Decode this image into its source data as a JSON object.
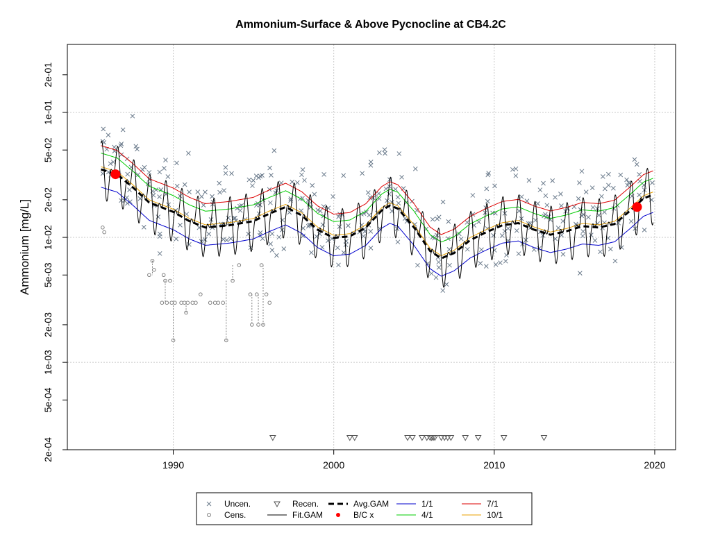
{
  "chart_data": {
    "type": "scatter",
    "title": "Ammonium-Surface & Above Pycnocline at CB4.2C",
    "xlabel": "",
    "ylabel": "Ammonium [mg/L]",
    "log_y": true,
    "xlim": [
      1983.4,
      2021.3
    ],
    "ylim": [
      0.0002,
      0.35
    ],
    "grid": true,
    "x_ticks": [
      1990,
      2000,
      2010,
      2020
    ],
    "x_tick_labels": [
      "1990",
      "2000",
      "2010",
      "2020"
    ],
    "y_ticks": [
      0.0002,
      0.0005,
      0.001,
      0.002,
      0.005,
      0.01,
      0.02,
      0.05,
      0.1,
      0.2
    ],
    "y_tick_labels": [
      "2e-04",
      "5e-04",
      "1e-03",
      "2e-03",
      "5e-03",
      "1e-02",
      "2e-02",
      "5e-02",
      "1e-01",
      "2e-01"
    ],
    "legend": {
      "position": "bottom-center",
      "entries": [
        {
          "label": "Uncen.",
          "symbol": "x",
          "color": "#6b7b8c"
        },
        {
          "label": "Cens.",
          "symbol": "circle",
          "color": "#808080"
        },
        {
          "label": "Recen.",
          "symbol": "triangle-down",
          "color": "#555555"
        },
        {
          "label": "Fit.GAM",
          "symbol": "line",
          "color": "#000000"
        },
        {
          "label": "Avg.GAM",
          "symbol": "dashed-line",
          "color": "#000000"
        },
        {
          "label": "B/C x",
          "symbol": "dot",
          "color": "#ff0000"
        },
        {
          "label": "1/1",
          "symbol": "line",
          "color": "#0000cd"
        },
        {
          "label": "4/1",
          "symbol": "line",
          "color": "#00cc00"
        },
        {
          "label": "7/1",
          "symbol": "line",
          "color": "#dd0000"
        },
        {
          "label": "10/1",
          "symbol": "line",
          "color": "#e8a000"
        }
      ]
    },
    "series": [
      {
        "name": "Uncen.",
        "type": "scatter",
        "marker": "x",
        "color": "#6b7b8c",
        "seed": 17,
        "n": 380
      },
      {
        "name": "Cens.",
        "type": "scatter",
        "marker": "circle",
        "color": "#808080",
        "points": [
          [
            1985.6,
            0.012
          ],
          [
            1985.7,
            0.011
          ],
          [
            1988.7,
            0.0065
          ],
          [
            1988.8,
            0.0055
          ],
          [
            1988.5,
            0.005
          ],
          [
            1989.5,
            0.0045
          ],
          [
            1989.8,
            0.0045
          ],
          [
            1989.3,
            0.003
          ],
          [
            1989.6,
            0.003
          ],
          [
            1989.9,
            0.003
          ],
          [
            1990.1,
            0.003
          ],
          [
            1990.5,
            0.003
          ],
          [
            1990.7,
            0.003
          ],
          [
            1990.9,
            0.003
          ],
          [
            1991.2,
            0.003
          ],
          [
            1991.4,
            0.003
          ],
          [
            1991.7,
            0.0035
          ],
          [
            1992.3,
            0.003
          ],
          [
            1992.6,
            0.003
          ],
          [
            1992.8,
            0.003
          ],
          [
            1993.1,
            0.003
          ],
          [
            1993.3,
            0.0015
          ],
          [
            1993.7,
            0.0045
          ],
          [
            1994.1,
            0.006
          ],
          [
            1994.8,
            0.0035
          ],
          [
            1994.9,
            0.002
          ],
          [
            1995.2,
            0.0035
          ],
          [
            1995.3,
            0.002
          ],
          [
            1995.5,
            0.006
          ],
          [
            1995.6,
            0.002
          ],
          [
            1995.8,
            0.0035
          ],
          [
            1996.0,
            0.003
          ],
          [
            1990.0,
            0.0015
          ],
          [
            1990.8,
            0.0025
          ],
          [
            1989.4,
            0.005
          ]
        ]
      },
      {
        "name": "Recen.",
        "type": "scatter",
        "marker": "triangle-down",
        "color": "#555555",
        "points": [
          [
            1996.2,
            0.00025
          ],
          [
            2001.0,
            0.00025
          ],
          [
            2001.3,
            0.00025
          ],
          [
            2004.6,
            0.00025
          ],
          [
            2004.9,
            0.00025
          ],
          [
            2005.5,
            0.00025
          ],
          [
            2005.8,
            0.00025
          ],
          [
            2006.0,
            0.00025
          ],
          [
            2006.1,
            0.00025
          ],
          [
            2006.2,
            0.00025
          ],
          [
            2006.3,
            0.00025
          ],
          [
            2006.7,
            0.00025
          ],
          [
            2006.9,
            0.00025
          ],
          [
            2007.1,
            0.00025
          ],
          [
            2007.3,
            0.00025
          ],
          [
            2008.2,
            0.00025
          ],
          [
            2009.0,
            0.00025
          ],
          [
            2010.6,
            0.00025
          ],
          [
            2013.1,
            0.00025
          ]
        ]
      },
      {
        "name": "Fit.GAM",
        "type": "line",
        "color": "#000000",
        "pattern": "seasonal",
        "amplitude_log10": 0.27
      },
      {
        "name": "Avg.GAM",
        "type": "line",
        "color": "#000000",
        "dashed": true,
        "points": [
          [
            1985.5,
            0.035
          ],
          [
            1986.5,
            0.032
          ],
          [
            1987.5,
            0.025
          ],
          [
            1988.5,
            0.019
          ],
          [
            1990.0,
            0.016
          ],
          [
            1991.0,
            0.0135
          ],
          [
            1992.0,
            0.012
          ],
          [
            1993.5,
            0.0125
          ],
          [
            1995.0,
            0.0135
          ],
          [
            1996.0,
            0.0155
          ],
          [
            1997.0,
            0.0175
          ],
          [
            1998.0,
            0.015
          ],
          [
            1999.0,
            0.0115
          ],
          [
            2000.0,
            0.0099
          ],
          [
            2001.0,
            0.0102
          ],
          [
            2002.0,
            0.012
          ],
          [
            2003.0,
            0.0165
          ],
          [
            2003.5,
            0.018
          ],
          [
            2004.0,
            0.017
          ],
          [
            2005.0,
            0.012
          ],
          [
            2006.0,
            0.0078
          ],
          [
            2006.7,
            0.0068
          ],
          [
            2007.5,
            0.0075
          ],
          [
            2008.5,
            0.0095
          ],
          [
            2009.5,
            0.011
          ],
          [
            2010.5,
            0.0125
          ],
          [
            2011.5,
            0.013
          ],
          [
            2012.5,
            0.0115
          ],
          [
            2013.5,
            0.0105
          ],
          [
            2014.5,
            0.0112
          ],
          [
            2015.5,
            0.0123
          ],
          [
            2016.5,
            0.012
          ],
          [
            2017.5,
            0.0128
          ],
          [
            2018.5,
            0.0165
          ],
          [
            2019.3,
            0.0205
          ],
          [
            2019.9,
            0.022
          ]
        ]
      },
      {
        "name": "B/C x",
        "type": "scatter",
        "marker": "dot",
        "color": "#ff0000",
        "points": [
          [
            1986.4,
            0.032
          ],
          [
            2018.9,
            0.0175
          ]
        ]
      },
      {
        "name": "1/1",
        "type": "line",
        "color": "#0000cd",
        "factor": 0.72
      },
      {
        "name": "4/1",
        "type": "line",
        "color": "#00cc00",
        "factor": 1.35
      },
      {
        "name": "7/1",
        "type": "line",
        "color": "#dd0000",
        "factor": 1.55
      },
      {
        "name": "10/1",
        "type": "line",
        "color": "#e8a000",
        "factor": 1.05
      }
    ],
    "censored_links": [
      [
        1989.5,
        0.0045,
        0.003
      ],
      [
        1993.3,
        0.0045,
        0.0015
      ],
      [
        1993.7,
        0.006,
        0.0045
      ],
      [
        1994.9,
        0.0035,
        0.002
      ],
      [
        1995.3,
        0.0035,
        0.002
      ],
      [
        1995.6,
        0.006,
        0.002
      ],
      [
        1990.0,
        0.003,
        0.0015
      ],
      [
        1990.8,
        0.003,
        0.0025
      ],
      [
        1988.7,
        0.0065,
        0.005
      ]
    ]
  }
}
